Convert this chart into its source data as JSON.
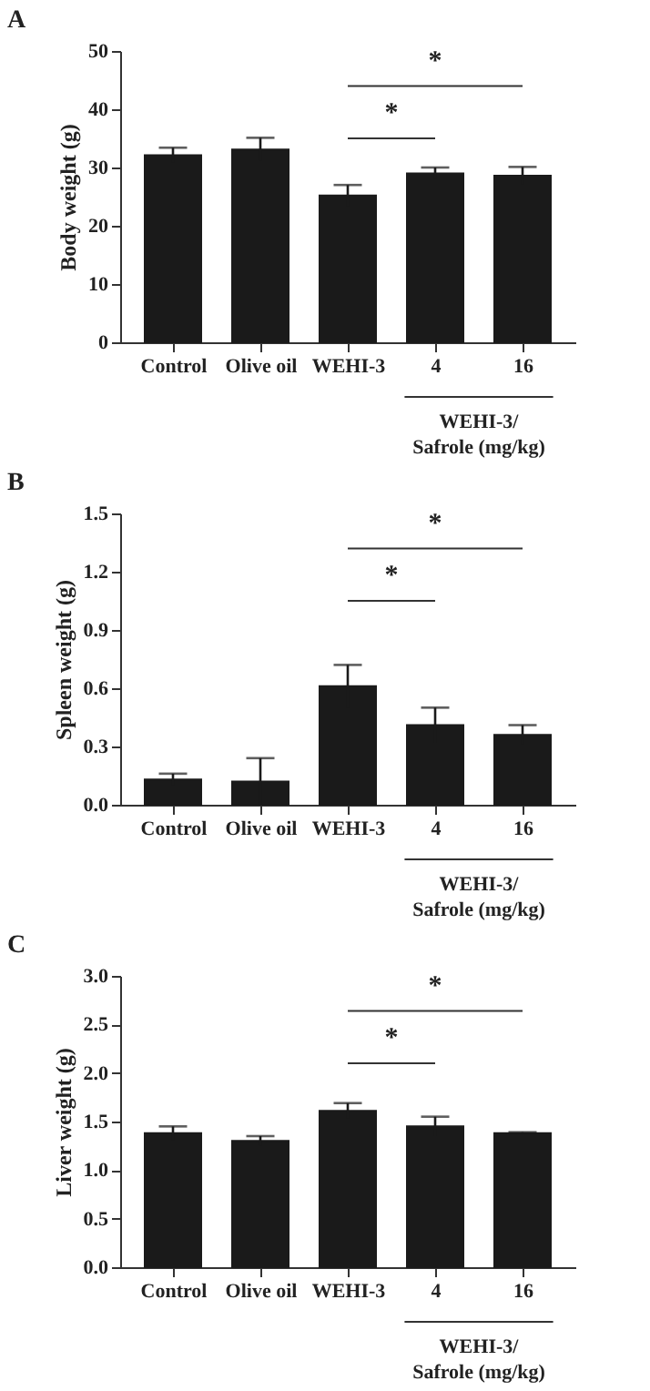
{
  "chart_data": [
    {
      "type": "bar",
      "title": "A",
      "ylabel": "Body weight (g)",
      "categories": [
        "Control",
        "Olive oil",
        "WEHI-3",
        "4",
        "16"
      ],
      "values": [
        32.1,
        33.1,
        25.2,
        29.0,
        28.6
      ],
      "errors": [
        1.3,
        2.0,
        1.8,
        1.0,
        1.5
      ],
      "color": "#1a1a1a",
      "ylim": [
        0,
        50
      ],
      "yticks": [
        0,
        10,
        20,
        30,
        40,
        50
      ],
      "annotations": [
        "*",
        "*",
        "WEHI-3/\nSafrole (mg/kg)"
      ]
    },
    {
      "type": "bar",
      "title": "B",
      "ylabel": "Spleen weight (g)",
      "categories": [
        "Control",
        "Olive oil",
        "WEHI-3",
        "4",
        "16"
      ],
      "values": [
        0.13,
        0.12,
        0.61,
        0.41,
        0.36
      ],
      "errors": [
        0.03,
        0.12,
        0.11,
        0.09,
        0.05
      ],
      "color": "#1a1a1a",
      "ylim": [
        0,
        1.5
      ],
      "yticks": [
        {
          "value": 0,
          "label": "0.0"
        },
        0.3,
        0.6,
        0.9,
        1.2,
        1.5
      ],
      "annotations": [
        "*",
        "*",
        "WEHI-3/\nSafrole (mg/kg)"
      ]
    },
    {
      "type": "bar",
      "title": "C",
      "ylabel": "Liver weight (g)",
      "categories": [
        "Control",
        "Olive oil",
        "WEHI-3",
        "4",
        "16"
      ],
      "values": [
        1.38,
        1.3,
        1.61,
        1.45,
        1.38
      ],
      "errors": [
        0.07,
        0.05,
        0.08,
        0.1,
        0.01
      ],
      "color": "#1a1a1a",
      "ylim": [
        0,
        3.0
      ],
      "yticks": [
        {
          "value": 0,
          "label": "0.0"
        },
        0.5,
        {
          "value": 1,
          "label": "1.0"
        },
        1.5,
        {
          "value": 2,
          "label": "2.0"
        },
        2.5,
        {
          "value": 3,
          "label": "3.0"
        }
      ],
      "annotations": [
        "*",
        "*",
        "WEHI-3/\nSafrole (mg/kg)"
      ]
    }
  ]
}
